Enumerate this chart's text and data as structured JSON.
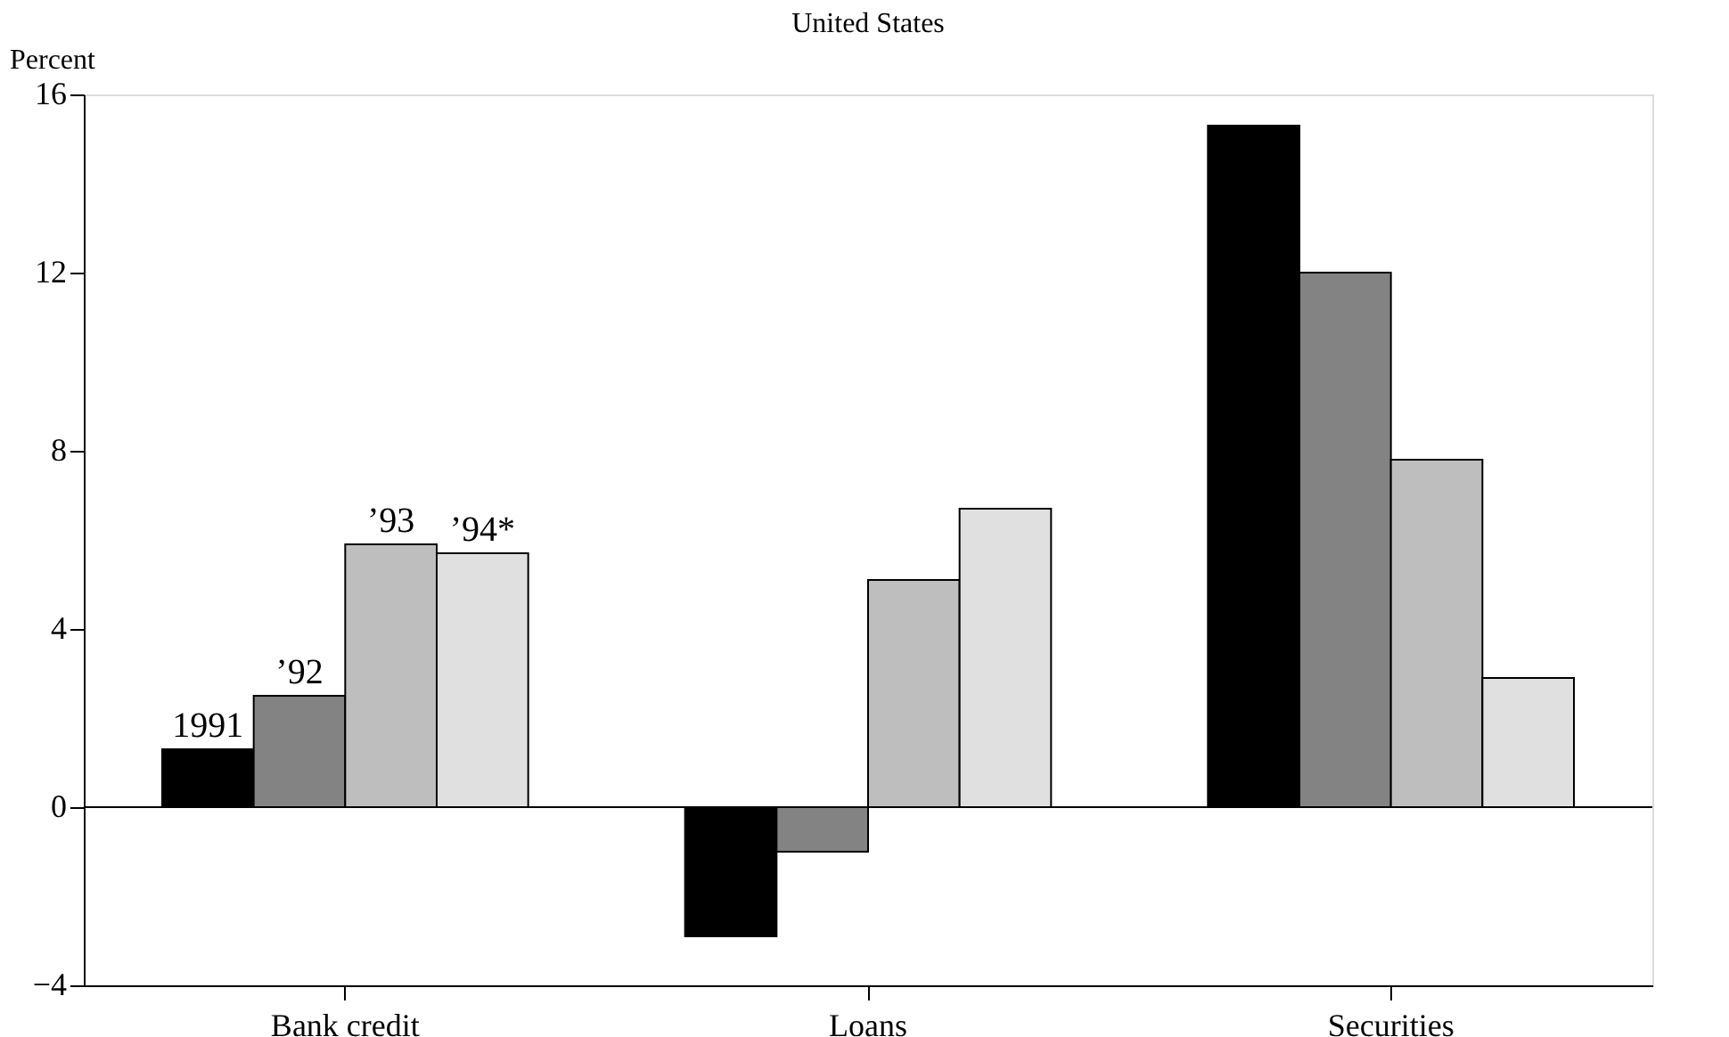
{
  "chart_data": {
    "type": "bar",
    "title": "United States",
    "ylabel": "Percent",
    "categories": [
      "Bank credit",
      "Loans",
      "Securities"
    ],
    "series": [
      {
        "name": "1991",
        "color": "#000000",
        "values": [
          1.3,
          -2.9,
          15.3
        ]
      },
      {
        "name": "’92",
        "color": "#838383",
        "values": [
          2.5,
          -1.0,
          12.0
        ]
      },
      {
        "name": "’93",
        "color": "#bebebe",
        "values": [
          5.9,
          5.1,
          7.8
        ]
      },
      {
        "name": "’94*",
        "color": "#e0e0e0",
        "values": [
          5.7,
          6.7,
          2.9
        ]
      }
    ],
    "ylim": [
      -4,
      16
    ],
    "yticks": [
      -4,
      0,
      4,
      8,
      12,
      16
    ],
    "grid": false,
    "legend": false,
    "ref_lines": [
      {
        "axis": "y",
        "value": 0,
        "color": "#000000"
      }
    ]
  }
}
